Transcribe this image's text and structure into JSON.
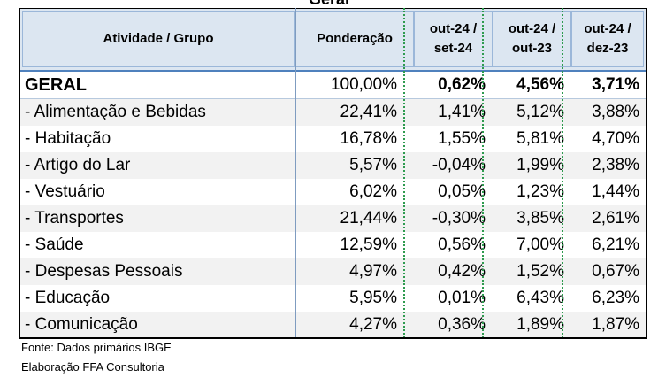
{
  "top_title": "Geral",
  "table": {
    "headers": [
      {
        "line1": "Atividade / Grupo",
        "line2": ""
      },
      {
        "line1": "Ponderação",
        "line2": ""
      },
      {
        "line1": "out-24  /",
        "line2": "set-24"
      },
      {
        "line1": "out-24  /",
        "line2": "out-23"
      },
      {
        "line1": "out-24  /",
        "line2": "dez-23"
      }
    ],
    "rows": [
      {
        "label": "GERAL",
        "ponderacao": "100,00%",
        "c1": "0,62%",
        "c2": "4,56%",
        "c3": "3,71%"
      },
      {
        "label": "- Alimentação e Bebidas",
        "ponderacao": "22,41%",
        "c1": "1,41%",
        "c2": "5,12%",
        "c3": "3,88%"
      },
      {
        "label": "- Habitação",
        "ponderacao": "16,78%",
        "c1": "1,55%",
        "c2": "5,81%",
        "c3": "4,70%"
      },
      {
        "label": "- Artigo do Lar",
        "ponderacao": "5,57%",
        "c1": "-0,04%",
        "c2": "1,99%",
        "c3": "2,38%"
      },
      {
        "label": "- Vestuário",
        "ponderacao": "6,02%",
        "c1": "0,05%",
        "c2": "1,23%",
        "c3": "1,44%"
      },
      {
        "label": "- Transportes",
        "ponderacao": "21,44%",
        "c1": "-0,30%",
        "c2": "3,85%",
        "c3": "2,61%"
      },
      {
        "label": "- Saúde",
        "ponderacao": "12,59%",
        "c1": "0,56%",
        "c2": "7,00%",
        "c3": "6,21%"
      },
      {
        "label": "- Despesas Pessoais",
        "ponderacao": "4,97%",
        "c1": "0,42%",
        "c2": "1,52%",
        "c3": "0,67%"
      },
      {
        "label": "- Educação",
        "ponderacao": "5,95%",
        "c1": "0,01%",
        "c2": "6,43%",
        "c3": "6,23%"
      },
      {
        "label": "- Comunicação",
        "ponderacao": "4,27%",
        "c1": "0,36%",
        "c2": "1,89%",
        "c3": "1,87%"
      }
    ]
  },
  "footnotes": {
    "source": "Fonte: Dados primários IBGE",
    "author": "Elaboração FFA Consultoria"
  },
  "colors": {
    "header_bg": "#dce6f1",
    "separator_green": "#2e9b4f",
    "stripe_gray": "#f2f2f2"
  }
}
